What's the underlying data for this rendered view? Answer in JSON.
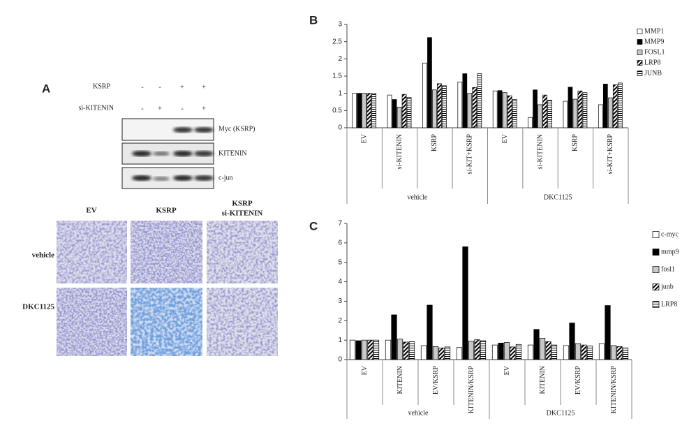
{
  "panel_a": {
    "label": "A",
    "treatments": [
      {
        "name": "KSRP",
        "signs": [
          "-",
          "-",
          "+",
          "+"
        ]
      },
      {
        "name": "si-KITENIN",
        "signs": [
          "-",
          "+",
          "-",
          "+"
        ]
      }
    ],
    "blots": [
      "Myc (KSRP)",
      "KITENIN",
      "c-jun"
    ],
    "columns": [
      [
        "EV"
      ],
      [
        "KSRP"
      ],
      [
        "KSRP",
        "si-KITENIN"
      ]
    ],
    "rows": [
      "vehicle",
      "DKC1125"
    ]
  },
  "chart_data": [
    {
      "type": "bar",
      "panel_label": "B",
      "categories": [
        "EV",
        "si-KITENIN",
        "KSRP",
        "si-KIT+KSRP",
        "EV",
        "si-KITENIN",
        "KSRP",
        "si-KIT+KSRP"
      ],
      "groups": [
        "vehicle",
        "DKC1125"
      ],
      "series": [
        {
          "name": "MMP1",
          "color": "#ffffff",
          "values": [
            1.0,
            0.95,
            1.88,
            1.33,
            1.07,
            0.3,
            0.77,
            0.67
          ]
        },
        {
          "name": "MMP9",
          "color": "#000000",
          "values": [
            1.0,
            0.82,
            2.62,
            1.57,
            1.08,
            1.1,
            1.18,
            1.27
          ]
        },
        {
          "name": "FOSL1",
          "color": "#c8c8c8",
          "values": [
            1.0,
            0.6,
            1.1,
            1.0,
            1.02,
            0.67,
            0.83,
            0.87
          ]
        },
        {
          "name": "LRP8",
          "color": "#000000",
          "pattern": "diagonal",
          "values": [
            1.0,
            0.97,
            1.28,
            1.17,
            0.93,
            0.95,
            1.07,
            1.25
          ]
        },
        {
          "name": "JUNB",
          "color": "#000000",
          "pattern": "horizontal",
          "values": [
            1.0,
            0.88,
            1.22,
            1.57,
            0.82,
            0.8,
            1.02,
            1.3
          ]
        }
      ],
      "ylim": [
        0,
        3
      ],
      "yticks": [
        0,
        0.5,
        1,
        1.5,
        2,
        2.5,
        3
      ]
    },
    {
      "type": "bar",
      "panel_label": "C",
      "categories": [
        "EV",
        "KITENIN",
        "EV/KSRP",
        "KITENIN/KSRP",
        "EV",
        "KITENIN",
        "EV/KSRP",
        "KITENIN/KSRP"
      ],
      "groups": [
        "vehicle",
        "DKC1125"
      ],
      "series": [
        {
          "name": "c-myc",
          "color": "#ffffff",
          "values": [
            1.0,
            1.0,
            0.72,
            0.62,
            0.75,
            0.75,
            0.72,
            0.82
          ]
        },
        {
          "name": "mmp9",
          "color": "#000000",
          "values": [
            0.97,
            2.3,
            2.8,
            5.8,
            0.85,
            1.55,
            1.88,
            2.78
          ]
        },
        {
          "name": "fosl1",
          "color": "#c8c8c8",
          "values": [
            1.0,
            1.05,
            0.67,
            0.95,
            0.88,
            1.1,
            0.82,
            0.72
          ]
        },
        {
          "name": "junb",
          "color": "#000000",
          "pattern": "diagonal",
          "values": [
            1.0,
            0.9,
            0.6,
            1.02,
            0.65,
            0.93,
            0.75,
            0.67
          ]
        },
        {
          "name": "LRP8",
          "color": "#000000",
          "pattern": "horizontal",
          "values": [
            1.0,
            0.92,
            0.65,
            0.97,
            0.78,
            0.75,
            0.7,
            0.6
          ]
        }
      ],
      "ylim": [
        0,
        7
      ],
      "yticks": [
        0,
        1,
        2,
        3,
        4,
        5,
        6,
        7
      ]
    }
  ]
}
